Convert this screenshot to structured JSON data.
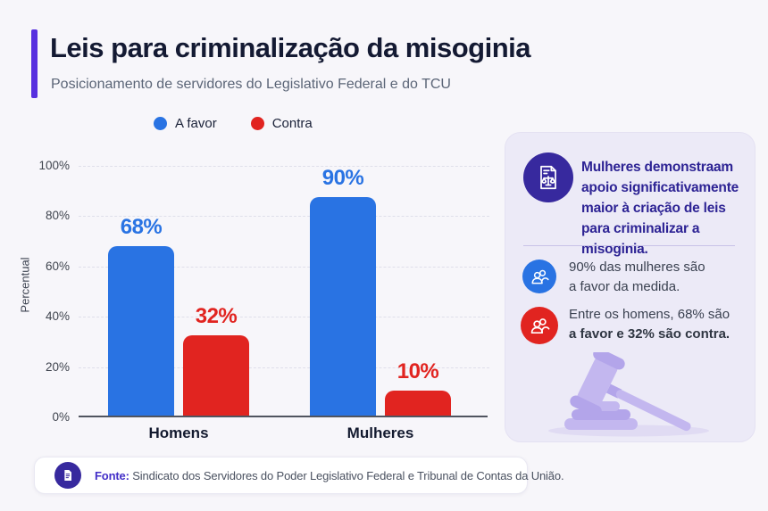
{
  "header": {
    "title": "Leis para criminalização da misoginia",
    "subtitle": "Posicionamento de servidores do Legislativo Federal e do TCU"
  },
  "legend": [
    {
      "label": "A favor",
      "color": "#2973e3"
    },
    {
      "label": "Contra",
      "color": "#e12420"
    }
  ],
  "chart_data": {
    "type": "bar",
    "title": "Leis para criminalização da misoginia",
    "categories": [
      "Homens",
      "Mulheres"
    ],
    "series": [
      {
        "name": "A favor",
        "color": "#2973e3",
        "values": [
          68,
          90
        ]
      },
      {
        "name": "Contra",
        "color": "#e12420",
        "values": [
          32,
          10
        ]
      }
    ],
    "ylabel": "Percentual",
    "xlabel": "",
    "ylim": [
      0,
      100
    ],
    "yticks": [
      "0%",
      "20%",
      "40%",
      "60%",
      "80%",
      "100%"
    ],
    "grid": "horizontal-dashed",
    "legend_position": "top",
    "value_label_format": "percent"
  },
  "sidebar": {
    "insight": "Mulheres demonstraam apoio significativamente maior à criação de leis para criminalizar a misoginia.",
    "insight_icon": "document-scales-icon",
    "items": [
      {
        "icon": "group-icon",
        "color": "#2973e3",
        "line1": "90% das mulheres são",
        "line2": "a favor da medida.",
        "line2_bold": false
      },
      {
        "icon": "group-icon",
        "color": "#e12420",
        "line1": "Entre os homens, 68% são",
        "line2": "a favor e 32% são contra.",
        "line2_bold": true
      }
    ],
    "illustration": "gavel-illustration"
  },
  "footer": {
    "icon": "document-icon",
    "source_label": "Fonte:",
    "source_text": " Sindicato dos Servidores do Poder Legislativo Federal e Tribunal de Contas da União."
  },
  "colors": {
    "accent_purple": "#5730df",
    "dark_indigo": "#37299e",
    "card_background": "#eceaf7",
    "blue": "#2973e3",
    "red": "#e12420",
    "title_text": "#141a33",
    "insight_text": "#2d2394",
    "gavel_light": "#c3b7ef",
    "gavel_mid": "#ada0e8"
  }
}
